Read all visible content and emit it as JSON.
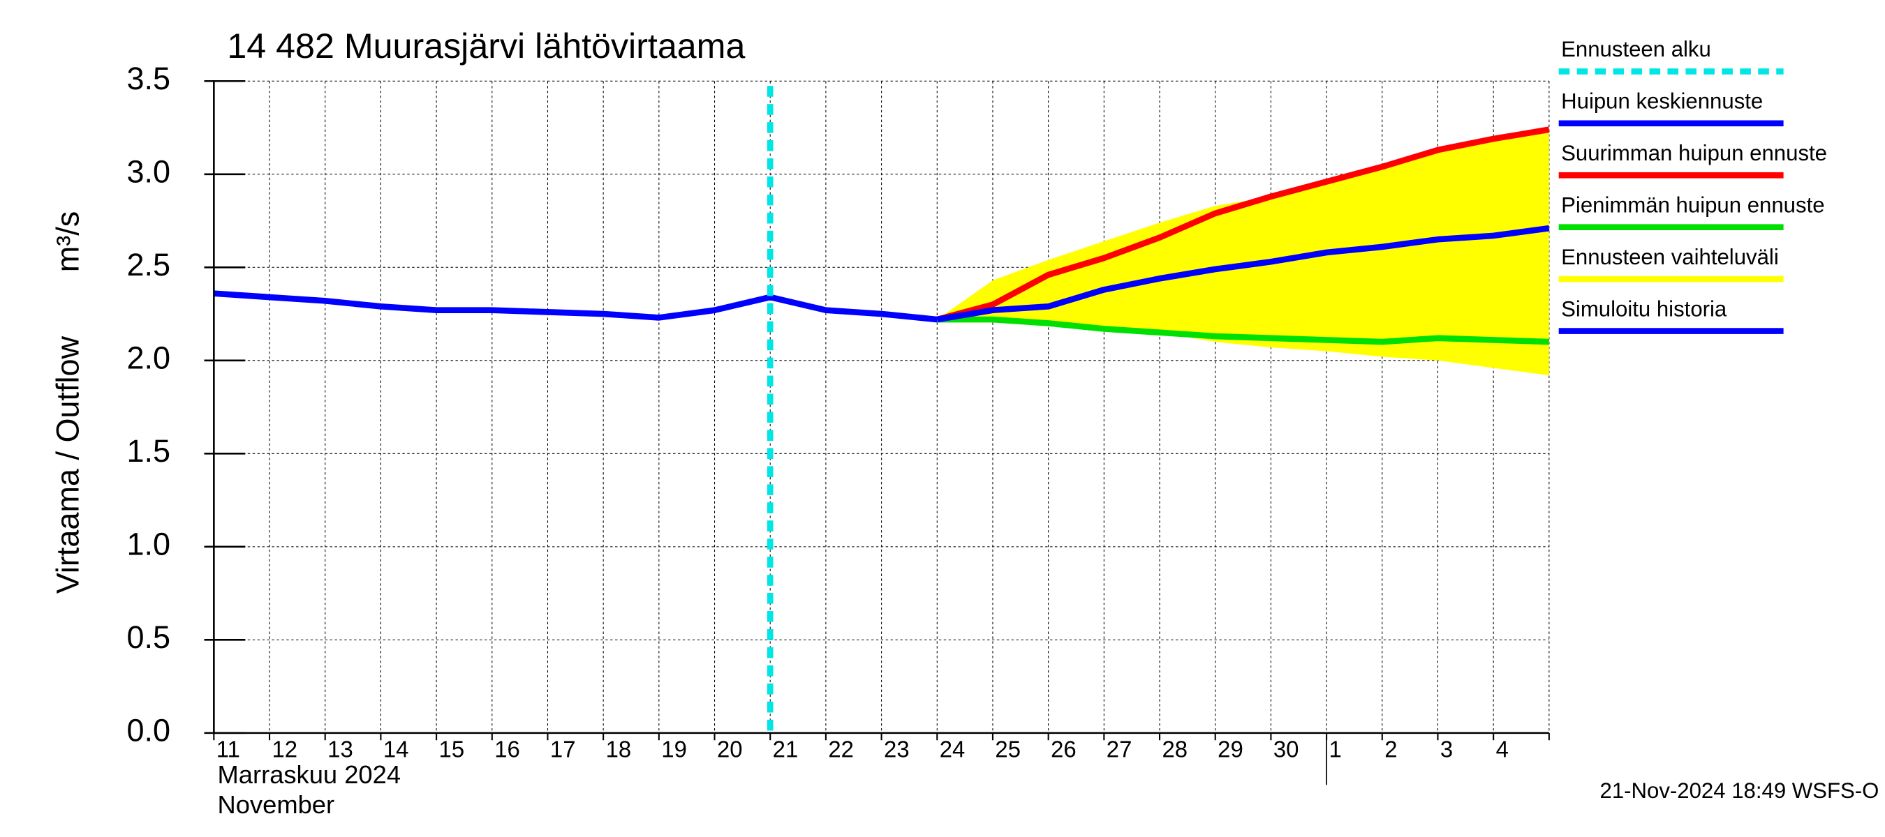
{
  "chart_data": {
    "type": "line",
    "title": "14 482 Muurasjärvi lähtövirtaama",
    "ylabel": "Virtaama / Outflow",
    "yunit": "m³/s",
    "month_label": "Marraskuu 2024",
    "month_label_en": "November",
    "timestamp": "21-Nov-2024 18:49 WSFS-O",
    "categories": [
      "11",
      "12",
      "13",
      "14",
      "15",
      "16",
      "17",
      "18",
      "19",
      "20",
      "21",
      "22",
      "23",
      "24",
      "25",
      "26",
      "27",
      "28",
      "29",
      "30",
      "1",
      "2",
      "3",
      "4",
      null
    ],
    "month_start": 20,
    "ylim": [
      0,
      3.5
    ],
    "yticks": [
      {
        "value": 0,
        "label": "0.0"
      },
      0.5,
      {
        "value": 1,
        "label": "1.0"
      },
      1.5,
      {
        "value": 2,
        "label": "2.0"
      },
      2.5,
      {
        "value": 3,
        "label": "3.0"
      },
      3.5
    ],
    "grid": true,
    "forecast_start": {
      "name": "Ennusteen alku",
      "color": "#00e5e5",
      "index": 10
    },
    "band": {
      "name": "Ennusteen vaihteluväli",
      "color": "#ffff00",
      "upper": [
        null,
        null,
        null,
        null,
        null,
        null,
        null,
        null,
        null,
        null,
        null,
        null,
        null,
        2.22,
        2.43,
        2.54,
        2.64,
        2.74,
        2.83,
        2.88,
        2.96,
        3.04,
        3.13,
        3.19,
        3.24
      ],
      "lower": [
        null,
        null,
        null,
        null,
        null,
        null,
        null,
        null,
        null,
        null,
        null,
        null,
        null,
        2.22,
        2.22,
        2.2,
        2.17,
        2.15,
        2.1,
        2.07,
        2.05,
        2.02,
        2.0,
        1.96,
        1.92
      ]
    },
    "series": [
      {
        "name": "Huipun keskiennuste",
        "color": "#0000ff",
        "values": [
          null,
          null,
          null,
          null,
          null,
          null,
          null,
          null,
          null,
          null,
          null,
          null,
          null,
          2.22,
          2.27,
          2.29,
          2.38,
          2.44,
          2.49,
          2.53,
          2.58,
          2.61,
          2.65,
          2.67,
          2.71
        ]
      },
      {
        "name": "Suurimman huipun ennuste",
        "color": "#ff0000",
        "values": [
          null,
          null,
          null,
          null,
          null,
          null,
          null,
          null,
          null,
          null,
          null,
          null,
          null,
          2.22,
          2.3,
          2.46,
          2.55,
          2.66,
          2.79,
          2.88,
          2.96,
          3.04,
          3.13,
          3.19,
          3.24
        ]
      },
      {
        "name": "Pienimmän huipun ennuste",
        "color": "#00e000",
        "values": [
          null,
          null,
          null,
          null,
          null,
          null,
          null,
          null,
          null,
          null,
          null,
          null,
          null,
          2.22,
          2.22,
          2.2,
          2.17,
          2.15,
          2.13,
          2.12,
          2.11,
          2.1,
          2.12,
          2.11,
          2.1
        ]
      },
      {
        "name": "Simuloitu historia",
        "color": "#0000ff",
        "values": [
          2.36,
          2.34,
          2.32,
          2.29,
          2.27,
          2.27,
          2.26,
          2.25,
          2.23,
          2.27,
          2.34,
          2.27,
          2.25,
          2.22,
          null,
          null,
          null,
          null,
          null,
          null,
          null,
          null,
          null,
          null,
          null
        ]
      }
    ]
  }
}
